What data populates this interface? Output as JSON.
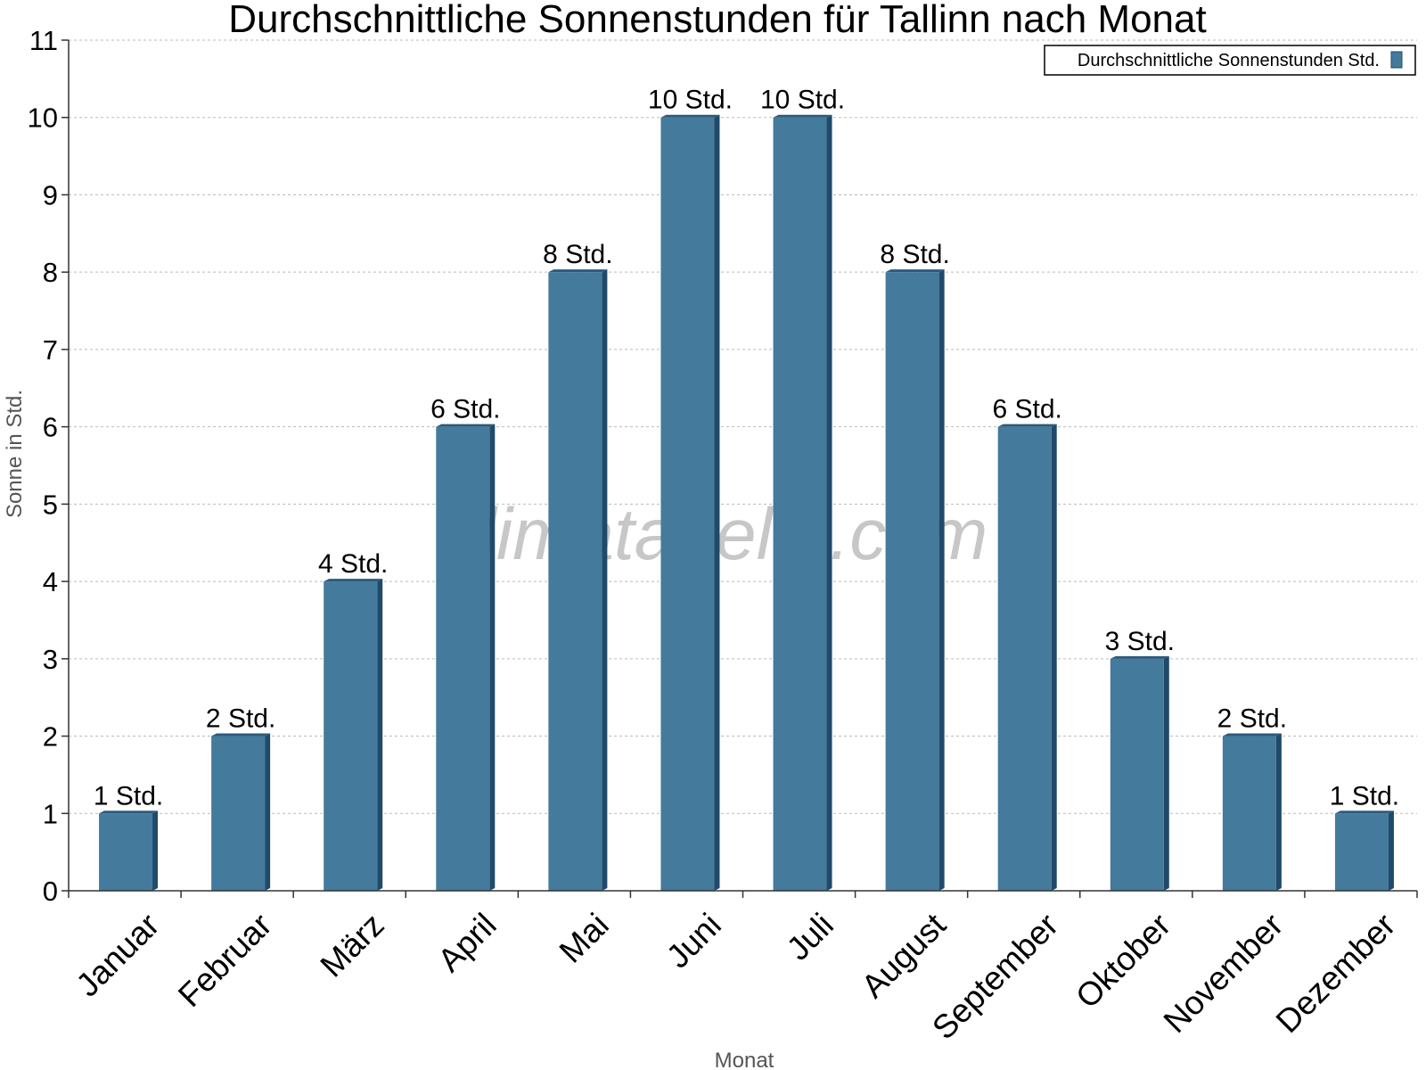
{
  "chart_data": {
    "type": "bar",
    "title": "Durchschnittliche Sonnenstunden für Tallinn nach Monat",
    "xlabel": "Monat",
    "ylabel": "Sonne in Std.",
    "categories": [
      "Januar",
      "Februar",
      "März",
      "April",
      "Mai",
      "Juni",
      "Juli",
      "August",
      "September",
      "Oktober",
      "November",
      "Dezember"
    ],
    "series": [
      {
        "name": "Durchschnittliche Sonnenstunden Std.",
        "values": [
          1,
          2,
          4,
          6,
          8,
          10,
          10,
          8,
          6,
          3,
          2,
          1
        ],
        "labels": [
          "1 Std.",
          "2 Std.",
          "4 Std.",
          "6 Std.",
          "8 Std.",
          "10 Std.",
          "10 Std.",
          "8 Std.",
          "6 Std.",
          "3 Std.",
          "2 Std.",
          "1 Std."
        ]
      }
    ],
    "ylim": [
      0,
      11
    ],
    "yticks": [
      "0",
      "1",
      "2",
      "3",
      "4",
      "5",
      "6",
      "7",
      "8",
      "9",
      "10",
      "11"
    ],
    "grid": true,
    "legend_position": "top-right",
    "watermark": "klimatabelle.com",
    "colors": {
      "bar": "#447a9c",
      "bar_side": "#1f4a6a",
      "bar_top": "#2c5a7c",
      "legend_swatch": "#447a9c",
      "grid": "#bbbbbb",
      "axis": "#333333"
    }
  }
}
